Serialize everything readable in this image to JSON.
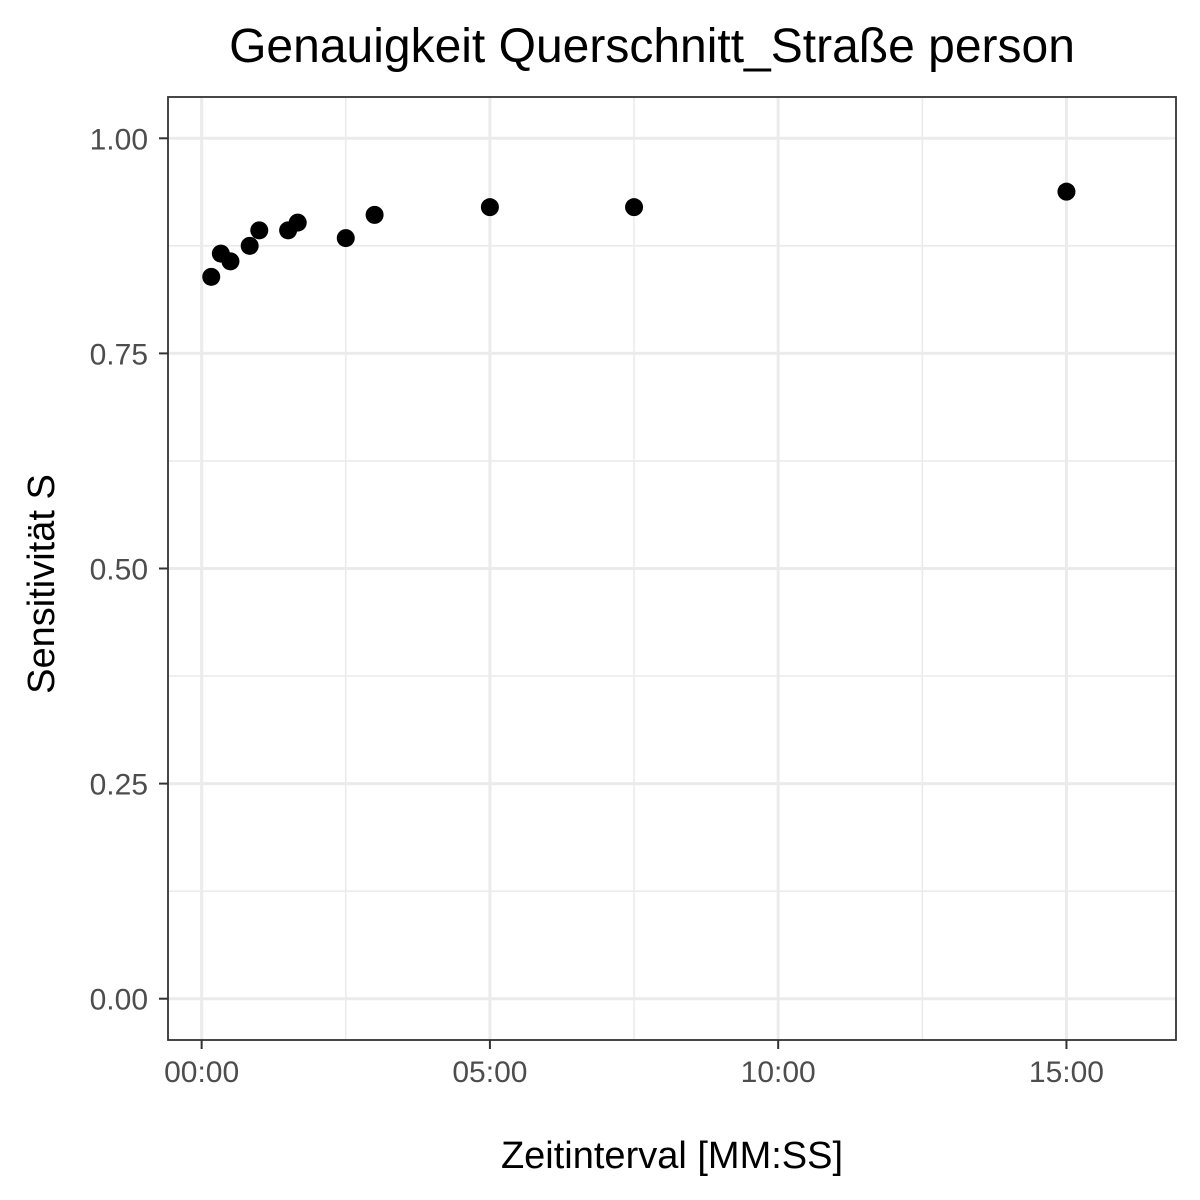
{
  "chart_data": {
    "type": "scatter",
    "title": "Genauigkeit Querschnitt_Straße person",
    "xlabel": "Zeitinterval [MM:SS]",
    "ylabel": "Sensitivität S",
    "x_ticks": [
      "00:00",
      "05:00",
      "10:00",
      "15:00"
    ],
    "y_ticks": [
      "0.00",
      "0.25",
      "0.50",
      "0.75",
      "1.00"
    ],
    "xlim_seconds": [
      -35,
      1014
    ],
    "ylim": [
      -0.048,
      1.048
    ],
    "grid": true,
    "point_color": "#000000",
    "points": [
      {
        "x": "00:10",
        "y": 0.839
      },
      {
        "x": "00:20",
        "y": 0.866
      },
      {
        "x": "00:30",
        "y": 0.857
      },
      {
        "x": "00:50",
        "y": 0.875
      },
      {
        "x": "01:00",
        "y": 0.893
      },
      {
        "x": "01:30",
        "y": 0.893
      },
      {
        "x": "01:40",
        "y": 0.902
      },
      {
        "x": "02:30",
        "y": 0.884
      },
      {
        "x": "03:00",
        "y": 0.911
      },
      {
        "x": "05:00",
        "y": 0.92
      },
      {
        "x": "07:30",
        "y": 0.92
      },
      {
        "x": "15:00",
        "y": 0.938
      }
    ]
  }
}
